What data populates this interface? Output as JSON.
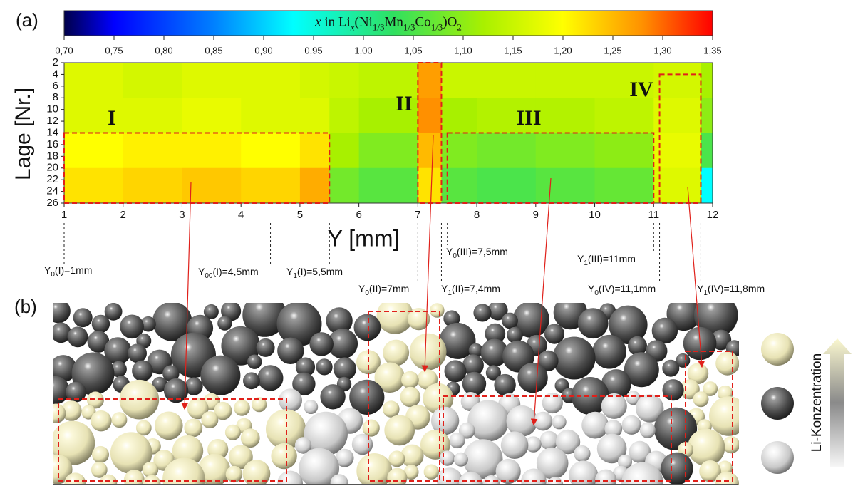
{
  "chart_data": {
    "type": "heatmap",
    "panel_label": "(a)",
    "colorbar": {
      "title_parts": [
        "x",
        " in Li",
        "x",
        "(Ni",
        "1/3",
        "Mn",
        "1/3",
        "Co",
        "1/3",
        ")O",
        "2"
      ],
      "lim": [
        0.7,
        1.35
      ],
      "ticks": [
        {
          "value": 0.7,
          "label": "0,70"
        },
        {
          "value": 0.75,
          "label": "0,75"
        },
        {
          "value": 0.8,
          "label": "0,80"
        },
        {
          "value": 0.85,
          "label": "0,85"
        },
        {
          "value": 0.9,
          "label": "0,90"
        },
        {
          "value": 0.95,
          "label": "0,95"
        },
        {
          "value": 1.0,
          "label": "1,00"
        },
        {
          "value": 1.05,
          "label": "1,05"
        },
        {
          "value": 1.1,
          "label": "1,10"
        },
        {
          "value": 1.15,
          "label": "1,15"
        },
        {
          "value": 1.2,
          "label": "1,20"
        },
        {
          "value": 1.25,
          "label": "1,25"
        },
        {
          "value": 1.3,
          "label": "1,30"
        },
        {
          "value": 1.35,
          "label": "1,35"
        }
      ],
      "colorscale": [
        [
          0.7,
          "#00004a"
        ],
        [
          0.75,
          "#0000ff"
        ],
        [
          0.85,
          "#0080ff"
        ],
        [
          0.93,
          "#00ffff"
        ],
        [
          1.03,
          "#30e060"
        ],
        [
          1.12,
          "#a8f000"
        ],
        [
          1.2,
          "#ffff00"
        ],
        [
          1.28,
          "#ff9000"
        ],
        [
          1.35,
          "#ff0000"
        ]
      ]
    },
    "xlabel": "Y [mm]",
    "ylabel": "Lage [Nr.]",
    "xlim": [
      1,
      12
    ],
    "ylim": [
      26,
      2
    ],
    "xticks": [
      1,
      2,
      3,
      4,
      5,
      6,
      7,
      8,
      9,
      10,
      11,
      12
    ],
    "yticks": [
      2,
      4,
      6,
      8,
      10,
      12,
      14,
      16,
      18,
      20,
      22,
      24,
      26
    ],
    "x_edges": [
      1,
      2,
      3,
      4,
      5,
      5.5,
      6,
      7,
      7.4,
      8,
      9,
      10,
      11,
      11.8,
      12
    ],
    "y_edges": [
      2,
      8,
      14,
      20,
      26
    ],
    "values": [
      [
        1.17,
        1.16,
        1.17,
        1.17,
        1.16,
        1.15,
        1.14,
        1.27,
        1.15,
        1.15,
        1.15,
        1.15,
        1.16,
        1.12
      ],
      [
        1.17,
        1.17,
        1.18,
        1.17,
        1.17,
        1.14,
        1.12,
        1.28,
        1.12,
        1.13,
        1.13,
        1.14,
        1.17,
        1.1
      ],
      [
        1.2,
        1.21,
        1.21,
        1.2,
        1.22,
        1.12,
        1.09,
        1.25,
        1.09,
        1.08,
        1.09,
        1.1,
        1.18,
        1.05
      ],
      [
        1.22,
        1.23,
        1.24,
        1.23,
        1.26,
        1.08,
        1.06,
        1.22,
        1.06,
        1.05,
        1.06,
        1.07,
        1.17,
        0.93
      ]
    ],
    "regions": [
      {
        "name": "I",
        "xlim": [
          1,
          5.5
        ],
        "ylim": [
          14,
          26
        ]
      },
      {
        "name": "II",
        "xlim": [
          7,
          7.4
        ],
        "ylim": [
          2,
          26
        ]
      },
      {
        "name": "III",
        "xlim": [
          7.5,
          11
        ],
        "ylim": [
          14,
          26
        ]
      },
      {
        "name": "IV",
        "xlim": [
          11.1,
          11.8
        ],
        "ylim": [
          4,
          26
        ]
      }
    ],
    "markers": [
      {
        "x": 1,
        "label_parts": [
          "Y",
          "0",
          "(I)=1mm"
        ]
      },
      {
        "x": 4.5,
        "label_parts": [
          "Y",
          "00",
          "(I)=4,5mm"
        ]
      },
      {
        "x": 5.5,
        "label_parts": [
          "Y",
          "1",
          "(I)=5,5mm"
        ]
      },
      {
        "x": 7,
        "label_parts": [
          "Y",
          "0",
          "(II)=7mm"
        ]
      },
      {
        "x": 7.4,
        "label_parts": [
          "Y",
          "1",
          "(II)=7,4mm"
        ]
      },
      {
        "x": 7.5,
        "label_parts": [
          "Y",
          "0",
          "(III)=7,5mm"
        ]
      },
      {
        "x": 11,
        "label_parts": [
          "Y",
          "1",
          "(III)=11mm"
        ]
      },
      {
        "x": 11.1,
        "label_parts": [
          "Y",
          "0",
          "(IV)=11,1mm"
        ]
      },
      {
        "x": 11.8,
        "label_parts": [
          "Y",
          "1",
          "(IV)=11,8mm"
        ]
      }
    ]
  },
  "panel_b": {
    "label": "(b)",
    "legend_title": "Li-Konzentration"
  }
}
